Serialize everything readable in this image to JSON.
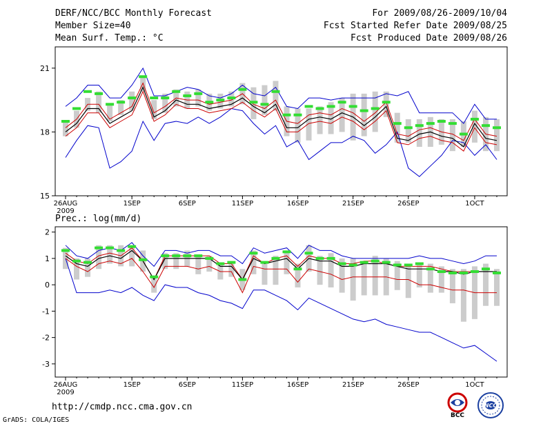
{
  "header": {
    "title": "DERF/NCC/BCC Monthly Forecast",
    "member": "Member Size=40",
    "variable": "Mean Surf. Temp.: °C",
    "period": "For 2009/08/26-2009/10/04",
    "started": "Fcst Started Refer Date 2009/08/25",
    "produced": "Fcst Produced Date 2009/08/26"
  },
  "footer": {
    "url": "http://cmdp.ncc.cma.gov.cn",
    "credit": "GrADS: COLA/IGES",
    "logo1": "BCC",
    "logo2": "NCC"
  },
  "colors": {
    "max_min": "#0000cc",
    "spread": "#cc0000",
    "mean": "#000000",
    "box": "#cccccc",
    "marker": "#33dd33"
  },
  "chart_data": [
    {
      "type": "line",
      "title": "Mean Surf. Temp.: °C",
      "ylim": [
        15,
        22
      ],
      "yticks": [
        15,
        18,
        21
      ],
      "xticks": [
        {
          "day": 0,
          "label": "26AUG",
          "label2": "2009"
        },
        {
          "day": 6,
          "label": "1SEP"
        },
        {
          "day": 11,
          "label": "6SEP"
        },
        {
          "day": 16,
          "label": "11SEP"
        },
        {
          "day": 21,
          "label": "16SEP"
        },
        {
          "day": 26,
          "label": "21SEP"
        },
        {
          "day": 31,
          "label": "26SEP"
        },
        {
          "day": 37,
          "label": "1OCT"
        }
      ],
      "days": 40,
      "series": [
        {
          "name": "max",
          "values": [
            19.2,
            19.6,
            20.2,
            20.2,
            19.6,
            19.6,
            20.2,
            21.0,
            19.7,
            19.7,
            19.9,
            20.1,
            20.0,
            19.7,
            19.6,
            19.8,
            20.2,
            19.8,
            19.7,
            20.1,
            19.2,
            19.1,
            19.6,
            19.6,
            19.5,
            19.6,
            19.6,
            19.6,
            19.6,
            19.8,
            19.7,
            19.9,
            18.9,
            18.9,
            18.9,
            18.9,
            18.4,
            19.3,
            18.6,
            18.6
          ]
        },
        {
          "name": "upper",
          "values": [
            18.2,
            18.6,
            19.3,
            19.3,
            18.6,
            18.9,
            19.2,
            20.3,
            18.9,
            19.2,
            19.6,
            19.5,
            19.5,
            19.3,
            19.4,
            19.5,
            19.8,
            19.3,
            19.1,
            19.5,
            18.5,
            18.4,
            18.8,
            18.9,
            18.8,
            19.1,
            18.9,
            18.5,
            18.9,
            19.4,
            17.9,
            17.8,
            18.1,
            18.2,
            18.0,
            17.9,
            17.6,
            18.6,
            17.9,
            17.8
          ]
        },
        {
          "name": "mean",
          "values": [
            18.0,
            18.4,
            19.1,
            19.1,
            18.4,
            18.7,
            19.0,
            20.1,
            18.7,
            19.0,
            19.5,
            19.3,
            19.3,
            19.1,
            19.2,
            19.3,
            19.6,
            19.2,
            18.9,
            19.3,
            18.2,
            18.2,
            18.6,
            18.7,
            18.6,
            18.9,
            18.7,
            18.3,
            18.7,
            19.2,
            17.7,
            17.6,
            17.9,
            18.0,
            17.8,
            17.7,
            17.3,
            18.4,
            17.7,
            17.6
          ]
        },
        {
          "name": "lower",
          "values": [
            17.8,
            18.2,
            18.9,
            18.9,
            18.2,
            18.5,
            18.8,
            19.9,
            18.5,
            18.8,
            19.3,
            19.1,
            19.1,
            18.9,
            19.0,
            19.1,
            19.4,
            19.0,
            18.7,
            19.1,
            18.0,
            18.0,
            18.4,
            18.5,
            18.4,
            18.7,
            18.5,
            18.1,
            18.5,
            19.0,
            17.5,
            17.4,
            17.7,
            17.8,
            17.6,
            17.5,
            17.1,
            18.2,
            17.5,
            17.4
          ]
        },
        {
          "name": "min",
          "values": [
            16.8,
            17.6,
            18.3,
            18.2,
            16.3,
            16.6,
            17.1,
            18.5,
            17.6,
            18.4,
            18.5,
            18.4,
            18.7,
            18.4,
            18.7,
            19.1,
            19.0,
            18.4,
            17.9,
            18.3,
            17.3,
            17.6,
            16.7,
            17.1,
            17.5,
            17.5,
            17.8,
            17.6,
            17.0,
            17.4,
            18.0,
            16.3,
            15.9,
            16.4,
            16.9,
            17.6,
            17.5,
            16.9,
            17.4,
            16.7
          ]
        },
        {
          "name": "box_high",
          "values": [
            18.5,
            19.0,
            19.6,
            19.9,
            19.3,
            19.5,
            19.9,
            20.6,
            19.5,
            19.8,
            20.0,
            19.9,
            20.0,
            19.8,
            19.8,
            19.9,
            20.3,
            20.1,
            20.2,
            20.4,
            19.2,
            19.1,
            19.1,
            19.2,
            19.4,
            19.6,
            19.8,
            19.8,
            19.9,
            19.9,
            18.9,
            18.6,
            18.6,
            18.7,
            18.6,
            18.6,
            18.5,
            19.0,
            18.7,
            18.6
          ]
        },
        {
          "name": "box_low",
          "values": [
            17.8,
            18.2,
            19.0,
            18.9,
            18.5,
            18.8,
            19.0,
            19.9,
            18.6,
            18.9,
            19.2,
            19.1,
            19.2,
            19.0,
            19.1,
            19.2,
            19.3,
            18.6,
            18.8,
            19.0,
            17.8,
            17.5,
            17.6,
            17.9,
            17.9,
            18.0,
            17.6,
            17.8,
            18.0,
            18.7,
            17.5,
            17.5,
            17.3,
            17.3,
            17.4,
            17.1,
            17.3,
            17.5,
            17.1,
            17.1
          ]
        },
        {
          "name": "marker",
          "values": [
            18.5,
            19.1,
            19.9,
            19.8,
            19.3,
            19.4,
            19.6,
            20.6,
            19.6,
            19.6,
            19.9,
            19.7,
            19.8,
            19.4,
            19.5,
            19.6,
            20.0,
            19.4,
            19.3,
            19.9,
            18.8,
            18.8,
            19.2,
            19.1,
            19.2,
            19.4,
            19.2,
            19.0,
            19.1,
            19.4,
            18.4,
            18.2,
            18.3,
            18.4,
            18.5,
            18.4,
            17.9,
            18.6,
            18.3,
            18.2
          ]
        }
      ]
    },
    {
      "type": "line",
      "title": "Prec.: log(mm/d)",
      "ylim": [
        -3.5,
        2.2
      ],
      "yticks": [
        -3,
        -2,
        -1,
        0,
        1,
        2
      ],
      "xticks": [
        {
          "day": 0,
          "label": "26AUG",
          "label2": "2009"
        },
        {
          "day": 6,
          "label": "1SEP"
        },
        {
          "day": 11,
          "label": "6SEP"
        },
        {
          "day": 16,
          "label": "11SEP"
        },
        {
          "day": 21,
          "label": "16SEP"
        },
        {
          "day": 26,
          "label": "21SEP"
        },
        {
          "day": 31,
          "label": "26SEP"
        },
        {
          "day": 37,
          "label": "1OCT"
        }
      ],
      "days": 40,
      "series": [
        {
          "name": "max",
          "values": [
            1.5,
            1.1,
            1.0,
            1.3,
            1.4,
            1.3,
            1.6,
            1.1,
            0.7,
            1.3,
            1.3,
            1.2,
            1.3,
            1.3,
            1.1,
            1.1,
            0.8,
            1.4,
            1.2,
            1.3,
            1.4,
            1.0,
            1.5,
            1.3,
            1.3,
            1.1,
            1.0,
            1.0,
            1.0,
            1.0,
            1.0,
            1.0,
            1.1,
            1.0,
            1.0,
            0.9,
            0.8,
            0.9,
            1.1,
            1.1
          ]
        },
        {
          "name": "upper",
          "values": [
            1.2,
            0.9,
            0.8,
            1.1,
            1.2,
            1.1,
            1.4,
            0.9,
            0.2,
            1.1,
            1.1,
            1.1,
            1.1,
            1.1,
            0.8,
            0.8,
            0.2,
            1.1,
            0.8,
            1.0,
            1.1,
            0.7,
            1.1,
            1.0,
            1.0,
            0.8,
            0.8,
            0.9,
            0.9,
            0.8,
            0.7,
            0.7,
            0.7,
            0.7,
            0.6,
            0.5,
            0.5,
            0.5,
            0.5,
            0.5
          ]
        },
        {
          "name": "mean",
          "values": [
            1.1,
            0.8,
            0.7,
            1.0,
            1.1,
            1.0,
            1.3,
            0.9,
            0.2,
            1.0,
            1.0,
            1.0,
            1.0,
            1.0,
            0.7,
            0.7,
            0.2,
            1.0,
            0.8,
            0.9,
            1.0,
            0.6,
            1.0,
            0.9,
            0.9,
            0.7,
            0.7,
            0.8,
            0.8,
            0.8,
            0.7,
            0.6,
            0.6,
            0.6,
            0.5,
            0.5,
            0.4,
            0.5,
            0.5,
            0.5
          ]
        },
        {
          "name": "lower",
          "values": [
            1.0,
            0.7,
            0.5,
            0.8,
            0.9,
            0.8,
            1.0,
            0.5,
            -0.1,
            0.7,
            0.7,
            0.7,
            0.6,
            0.7,
            0.5,
            0.5,
            -0.3,
            0.7,
            0.6,
            0.6,
            0.6,
            0.1,
            0.6,
            0.5,
            0.4,
            0.2,
            0.3,
            0.3,
            0.3,
            0.3,
            0.2,
            0.2,
            0.0,
            0.0,
            -0.1,
            -0.2,
            -0.2,
            -0.3,
            -0.3,
            -0.3
          ]
        },
        {
          "name": "min",
          "values": [
            1.0,
            -0.3,
            -0.3,
            -0.3,
            -0.2,
            -0.3,
            -0.1,
            -0.4,
            -0.6,
            0.0,
            -0.1,
            -0.1,
            -0.3,
            -0.4,
            -0.6,
            -0.7,
            -0.9,
            -0.2,
            -0.2,
            -0.4,
            -0.6,
            -0.95,
            -0.5,
            -0.7,
            -0.9,
            -1.1,
            -1.3,
            -1.4,
            -1.3,
            -1.5,
            -1.6,
            -1.7,
            -1.8,
            -1.8,
            -2.0,
            -2.2,
            -2.4,
            -2.3,
            -2.6,
            -2.9
          ]
        },
        {
          "name": "box_high",
          "values": [
            1.4,
            1.0,
            1.0,
            1.5,
            1.5,
            1.5,
            1.5,
            1.3,
            0.3,
            1.2,
            1.2,
            1.3,
            1.1,
            1.1,
            0.8,
            0.9,
            0.6,
            1.3,
            0.9,
            1.1,
            1.3,
            0.8,
            1.5,
            1.1,
            1.2,
            1.0,
            1.0,
            0.9,
            1.1,
            1.0,
            0.9,
            0.8,
            0.8,
            0.8,
            0.7,
            0.6,
            0.6,
            0.7,
            0.8,
            0.6
          ]
        },
        {
          "name": "box_low",
          "values": [
            0.6,
            0.2,
            0.3,
            0.6,
            0.8,
            0.7,
            0.7,
            0.5,
            -0.3,
            0.6,
            0.6,
            0.7,
            0.4,
            0.5,
            0.2,
            0.3,
            -0.2,
            0.4,
            0.0,
            0.0,
            0.4,
            -0.1,
            0.5,
            0.0,
            -0.1,
            -0.3,
            -0.6,
            -0.4,
            -0.4,
            -0.4,
            -0.2,
            -0.5,
            -0.1,
            -0.3,
            -0.3,
            -0.7,
            -1.4,
            -1.3,
            -0.8,
            -0.8
          ]
        },
        {
          "name": "marker",
          "values": [
            1.3,
            0.9,
            0.85,
            1.4,
            1.4,
            1.3,
            1.45,
            0.95,
            0.3,
            1.1,
            1.1,
            1.1,
            1.1,
            1.0,
            0.8,
            0.85,
            0.2,
            1.2,
            0.85,
            1.0,
            1.25,
            0.6,
            1.2,
            1.0,
            1.0,
            0.8,
            0.75,
            0.85,
            0.9,
            0.85,
            0.75,
            0.75,
            0.8,
            0.6,
            0.5,
            0.45,
            0.45,
            0.5,
            0.6,
            0.45
          ]
        }
      ]
    }
  ]
}
